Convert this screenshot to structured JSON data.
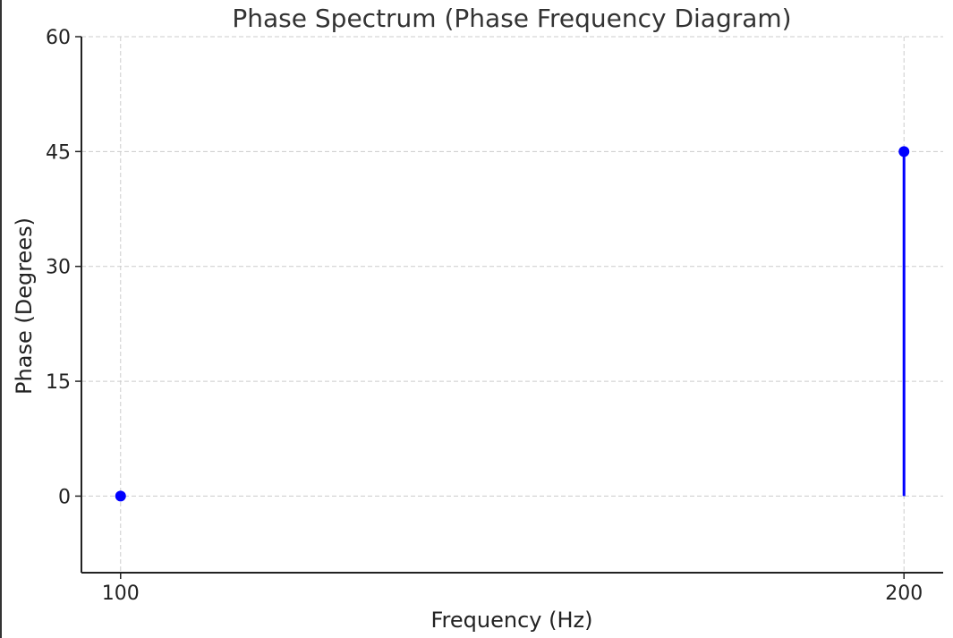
{
  "chart_data": {
    "type": "scatter",
    "title": "Phase Spectrum (Phase Frequency Diagram)",
    "xlabel": "Frequency (Hz)",
    "ylabel": "Phase (Degrees)",
    "x": [
      100,
      200
    ],
    "series": [
      {
        "values": [
          0,
          45
        ],
        "stems": true,
        "color": "#0000ff"
      }
    ],
    "xlim": [
      95,
      205
    ],
    "ylim": [
      -10,
      60
    ],
    "xticks": [
      100,
      200
    ],
    "yticks": [
      0,
      15,
      30,
      45,
      60
    ],
    "grid": true,
    "axis_color": "#222222",
    "grid_color": "#cccccc"
  }
}
